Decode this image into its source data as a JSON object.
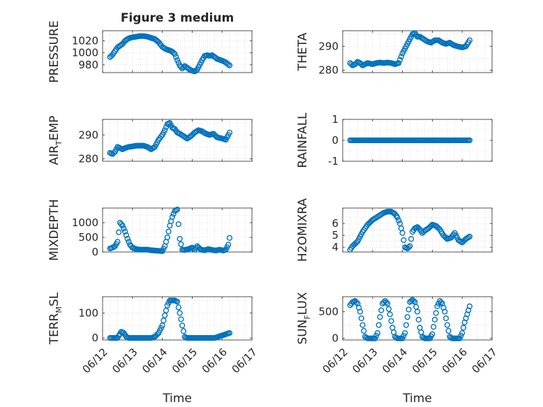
{
  "figure": {
    "title": "Figure 3 medium",
    "xlabel": "Time"
  },
  "colors": {
    "marker": "#0072BD",
    "axis": "#262626",
    "grid": "#d9d9d9",
    "background": "#ffffff"
  },
  "x_ticks": [
    "06/12",
    "06/13",
    "06/14",
    "06/15",
    "06/16",
    "06/17"
  ],
  "chart_data": [
    {
      "type": "scatter",
      "ylabel": "PRESSURE",
      "ylim": [
        967,
        1037
      ],
      "yticks": [
        980,
        1000,
        1020
      ],
      "grid": true,
      "x": [
        "06/12 06:00",
        "06/12 08:00",
        "06/12 10:00",
        "06/12 12:00",
        "06/12 14:00",
        "06/12 16:00",
        "06/12 18:00",
        "06/12 20:00",
        "06/12 22:00",
        "06/13 00:00",
        "06/13 03:00",
        "06/13 06:00",
        "06/13 09:00",
        "06/13 12:00",
        "06/13 15:00",
        "06/13 18:00",
        "06/13 21:00",
        "06/14 00:00",
        "06/14 03:00",
        "06/14 06:00",
        "06/14 08:00",
        "06/14 10:00",
        "06/14 12:00",
        "06/14 14:00",
        "06/14 16:00",
        "06/14 18:00",
        "06/14 20:00",
        "06/14 22:00",
        "06/15 00:00",
        "06/15 02:00",
        "06/15 04:00",
        "06/15 06:00",
        "06/15 08:00",
        "06/15 10:00",
        "06/15 12:00",
        "06/15 14:00",
        "06/15 16:00",
        "06/15 18:00",
        "06/15 20:00",
        "06/16 00:00",
        "06/16 03:00",
        "06/16 06:00"
      ],
      "y": [
        993,
        997,
        1003,
        1009,
        1012,
        1015,
        1020,
        1023,
        1025,
        1026,
        1027,
        1028,
        1028,
        1027,
        1025,
        1023,
        1018,
        1010,
        1006,
        1004,
        1002,
        998,
        988,
        979,
        974,
        978,
        975,
        972,
        970,
        969,
        972,
        980,
        988,
        995,
        996,
        995,
        996,
        993,
        990,
        987,
        984,
        979
      ]
    },
    {
      "type": "scatter",
      "ylabel": "THETA",
      "ylim": [
        279,
        296.5
      ],
      "yticks": [
        280,
        290
      ],
      "grid": true,
      "x": [
        "06/12 06:00",
        "06/12 08:00",
        "06/12 10:00",
        "06/12 12:00",
        "06/12 14:00",
        "06/12 16:00",
        "06/12 18:00",
        "06/12 20:00",
        "06/13 00:00",
        "06/13 03:00",
        "06/13 06:00",
        "06/13 09:00",
        "06/13 12:00",
        "06/13 15:00",
        "06/13 18:00",
        "06/13 21:00",
        "06/14 00:00",
        "06/14 02:00",
        "06/14 04:00",
        "06/14 06:00",
        "06/14 08:00",
        "06/14 10:00",
        "06/14 12:00",
        "06/14 14:00",
        "06/14 17:00",
        "06/14 20:00",
        "06/14 23:00",
        "06/15 02:00",
        "06/15 05:00",
        "06/15 08:00",
        "06/15 11:00",
        "06/15 14:00",
        "06/15 17:00",
        "06/15 20:00",
        "06/16 00:00",
        "06/16 03:00",
        "06/16 06:00"
      ],
      "y": [
        283,
        282,
        282.5,
        283.5,
        283,
        282,
        282.5,
        283,
        282.5,
        283,
        283.2,
        283,
        283.2,
        283,
        282.5,
        283,
        287,
        289,
        291,
        293,
        295,
        295.5,
        294,
        294,
        293,
        292,
        291.5,
        292.5,
        292.5,
        291.5,
        291,
        291.5,
        290.5,
        290,
        289.5,
        290,
        292.5
      ]
    },
    {
      "type": "scatter",
      "ylabel": "AIR_TEMP",
      "ylim": [
        279,
        296.5
      ],
      "yticks": [
        280,
        290
      ],
      "grid": true,
      "x": [
        "06/12 06:00",
        "06/12 08:00",
        "06/12 10:00",
        "06/12 12:00",
        "06/12 14:00",
        "06/12 16:00",
        "06/12 18:00",
        "06/12 21:00",
        "06/13 00:00",
        "06/13 03:00",
        "06/13 06:00",
        "06/13 09:00",
        "06/13 12:00",
        "06/13 15:00",
        "06/13 18:00",
        "06/13 21:00",
        "06/14 00:00",
        "06/14 02:00",
        "06/14 04:00",
        "06/14 06:00",
        "06/14 08:00",
        "06/14 10:00",
        "06/14 12:00",
        "06/14 14:00",
        "06/14 17:00",
        "06/14 20:00",
        "06/14 23:00",
        "06/15 02:00",
        "06/15 05:00",
        "06/15 08:00",
        "06/15 11:00",
        "06/15 14:00",
        "06/15 17:00",
        "06/15 20:00",
        "06/16 00:00",
        "06/16 03:00",
        "06/16 06:00"
      ],
      "y": [
        282.5,
        282,
        283,
        285,
        284.5,
        284,
        284.5,
        285,
        285.2,
        285.5,
        285.5,
        285.5,
        285,
        284,
        285,
        288,
        290,
        292,
        294.5,
        295,
        293,
        292.5,
        291,
        290.5,
        289.5,
        288.5,
        289.5,
        291,
        292,
        291.5,
        290.5,
        290,
        290.5,
        289,
        288.5,
        288,
        291
      ]
    },
    {
      "type": "scatter",
      "ylabel": "RAINFALL",
      "ylim": [
        -1,
        1
      ],
      "yticks": [
        -1,
        0,
        1
      ],
      "grid": true,
      "x": [
        "06/12 06:00",
        "06/16 06:00"
      ],
      "y": [
        0,
        0
      ],
      "note_dense": true
    },
    {
      "type": "scatter",
      "ylabel": "MIXDEPTH",
      "ylim": [
        0,
        1500
      ],
      "yticks": [
        0,
        500,
        1000
      ],
      "grid": true,
      "x": [
        "06/12 06:00",
        "06/12 08:00",
        "06/12 10:00",
        "06/12 12:00",
        "06/12 14:00",
        "06/12 16:00",
        "06/12 18:00",
        "06/12 20:00",
        "06/12 22:00",
        "06/13 00:00",
        "06/13 03:00",
        "06/13 06:00",
        "06/13 09:00",
        "06/13 12:00",
        "06/13 15:00",
        "06/13 18:00",
        "06/13 21:00",
        "06/14 00:00",
        "06/14 02:00",
        "06/14 04:00",
        "06/14 06:00",
        "06/14 08:00",
        "06/14 10:00",
        "06/14 12:00",
        "06/14 13:00",
        "06/14 14:00",
        "06/14 16:00",
        "06/14 18:00",
        "06/14 21:00",
        "06/15 00:00",
        "06/15 02:00",
        "06/15 04:00",
        "06/15 07:00",
        "06/15 10:00",
        "06/15 13:00",
        "06/15 16:00",
        "06/15 19:00",
        "06/15 22:00",
        "06/16 01:00",
        "06/16 03:00",
        "06/16 05:00",
        "06/16 06:00"
      ],
      "y": [
        120,
        150,
        200,
        350,
        1000,
        900,
        700,
        450,
        250,
        150,
        100,
        80,
        80,
        80,
        60,
        50,
        40,
        30,
        200,
        500,
        900,
        1200,
        1400,
        1450,
        950,
        450,
        80,
        70,
        100,
        150,
        80,
        200,
        80,
        60,
        100,
        70,
        50,
        80,
        50,
        80,
        250,
        480
      ]
    },
    {
      "type": "scatter",
      "ylabel": "H2OMIXRA",
      "ylim": [
        3.6,
        7.3
      ],
      "yticks": [
        4,
        5,
        6
      ],
      "grid": true,
      "x": [
        "06/12 06:00",
        "06/12 08:00",
        "06/12 10:00",
        "06/12 12:00",
        "06/12 14:00",
        "06/12 16:00",
        "06/12 18:00",
        "06/12 20:00",
        "06/12 22:00",
        "06/13 00:00",
        "06/13 03:00",
        "06/13 06:00",
        "06/13 09:00",
        "06/13 12:00",
        "06/13 15:00",
        "06/13 18:00",
        "06/13 20:00",
        "06/13 22:00",
        "06/14 00:00",
        "06/14 02:00",
        "06/14 04:00",
        "06/14 06:00",
        "06/14 08:00",
        "06/14 10:00",
        "06/14 12:00",
        "06/14 14:00",
        "06/14 16:00",
        "06/14 18:00",
        "06/14 21:00",
        "06/15 00:00",
        "06/15 03:00",
        "06/15 06:00",
        "06/15 09:00",
        "06/15 12:00",
        "06/15 15:00",
        "06/15 18:00",
        "06/15 21:00",
        "06/16 00:00",
        "06/16 03:00",
        "06/16 06:00"
      ],
      "y": [
        3.8,
        4.1,
        4.3,
        4.5,
        4.9,
        5.3,
        5.6,
        5.9,
        6.1,
        6.3,
        6.5,
        6.7,
        6.9,
        7.0,
        7.0,
        6.8,
        6.5,
        6.0,
        5.2,
        4.0,
        3.9,
        4.1,
        5.3,
        5.6,
        5.7,
        5.5,
        5.2,
        5.4,
        5.6,
        5.9,
        5.8,
        5.5,
        5.0,
        4.7,
        4.8,
        5.2,
        4.6,
        4.4,
        4.7,
        4.9
      ]
    },
    {
      "type": "scatter",
      "ylabel": "TERR_MSL",
      "ylim": [
        -8,
        165
      ],
      "yticks": [
        0,
        100
      ],
      "grid": true,
      "x": [
        "06/12 06:00",
        "06/12 09:00",
        "06/12 12:00",
        "06/12 15:00",
        "06/12 17:00",
        "06/12 19:00",
        "06/12 21:00",
        "06/13 00:00",
        "06/13 03:00",
        "06/13 06:00",
        "06/13 09:00",
        "06/13 12:00",
        "06/13 15:00",
        "06/13 18:00",
        "06/13 21:00",
        "06/14 00:00",
        "06/14 02:00",
        "06/14 04:00",
        "06/14 06:00",
        "06/14 08:00",
        "06/14 10:00",
        "06/14 12:00",
        "06/14 14:00",
        "06/14 16:00",
        "06/14 18:00",
        "06/14 20:00",
        "06/14 22:00",
        "06/15 00:00",
        "06/15 03:00",
        "06/15 06:00",
        "06/15 09:00",
        "06/15 12:00",
        "06/15 15:00",
        "06/15 18:00",
        "06/15 21:00",
        "06/16 00:00",
        "06/16 03:00",
        "06/16 06:00"
      ],
      "y": [
        0,
        0,
        0,
        25,
        20,
        5,
        0,
        0,
        0,
        0,
        0,
        0,
        0,
        5,
        20,
        50,
        90,
        130,
        150,
        150,
        150,
        145,
        100,
        50,
        5,
        0,
        0,
        0,
        0,
        0,
        0,
        0,
        0,
        0,
        5,
        10,
        15,
        20
      ]
    },
    {
      "type": "scatter",
      "ylabel": "SUN_FLUX",
      "ylim": [
        -30,
        780
      ],
      "yticks": [
        0,
        500
      ],
      "grid": true,
      "x": [
        "06/12 06:00",
        "06/12 08:00",
        "06/12 10:00",
        "06/12 12:00",
        "06/12 14:00",
        "06/12 16:00",
        "06/12 18:00",
        "06/12 20:00",
        "06/12 22:00",
        "06/13 00:00",
        "06/13 02:00",
        "06/13 04:00",
        "06/13 06:00",
        "06/13 08:00",
        "06/13 10:00",
        "06/13 12:00",
        "06/13 14:00",
        "06/13 16:00",
        "06/13 18:00",
        "06/13 20:00",
        "06/13 22:00",
        "06/14 00:00",
        "06/14 02:00",
        "06/14 04:00",
        "06/14 06:00",
        "06/14 08:00",
        "06/14 10:00",
        "06/14 12:00",
        "06/14 14:00",
        "06/14 16:00",
        "06/14 18:00",
        "06/14 20:00",
        "06/14 22:00",
        "06/15 00:00",
        "06/15 02:00",
        "06/15 04:00",
        "06/15 06:00",
        "06/15 08:00",
        "06/15 10:00",
        "06/15 12:00",
        "06/15 14:00",
        "06/15 16:00",
        "06/15 18:00",
        "06/15 20:00",
        "06/15 22:00",
        "06/16 00:00",
        "06/16 02:00",
        "06/16 04:00",
        "06/16 06:00"
      ],
      "y": [
        620,
        680,
        700,
        650,
        500,
        250,
        30,
        0,
        0,
        0,
        0,
        100,
        400,
        650,
        700,
        650,
        450,
        200,
        30,
        0,
        0,
        0,
        100,
        400,
        680,
        720,
        680,
        500,
        200,
        30,
        0,
        0,
        0,
        80,
        350,
        600,
        700,
        650,
        500,
        250,
        30,
        0,
        0,
        0,
        0,
        100,
        300,
        450,
        600
      ]
    }
  ]
}
